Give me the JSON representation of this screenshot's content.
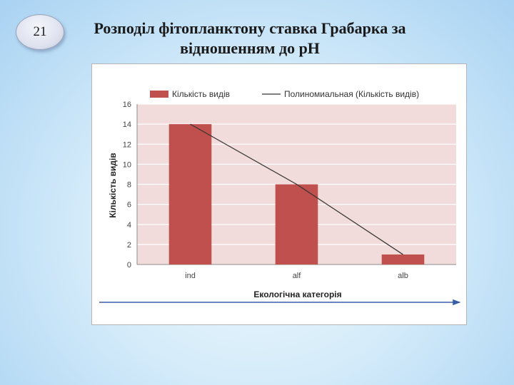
{
  "slide": {
    "number": "21",
    "title_line1": "Розподіл фітопланктону ставка Грабарка за",
    "title_line2": "відношенням до рН"
  },
  "chart_data": {
    "type": "bar",
    "categories": [
      "ind",
      "alf",
      "alb"
    ],
    "series": [
      {
        "name": "Кількість видів",
        "values": [
          14,
          8,
          1
        ],
        "color": "#c0504d"
      }
    ],
    "trendline": {
      "name": "Полиномиальная (Кількість видів)",
      "values": [
        14,
        8,
        1
      ],
      "color": "#333333"
    },
    "xlabel": "Екологічна категорія",
    "ylabel": "Кількість видів",
    "ylim": [
      0,
      16
    ],
    "yticks": [
      "0",
      "2",
      "4",
      "6",
      "8",
      "10",
      "12",
      "14",
      "16"
    ],
    "grid": true,
    "plot_background": "#f2dcdb",
    "legend_position": "top"
  }
}
